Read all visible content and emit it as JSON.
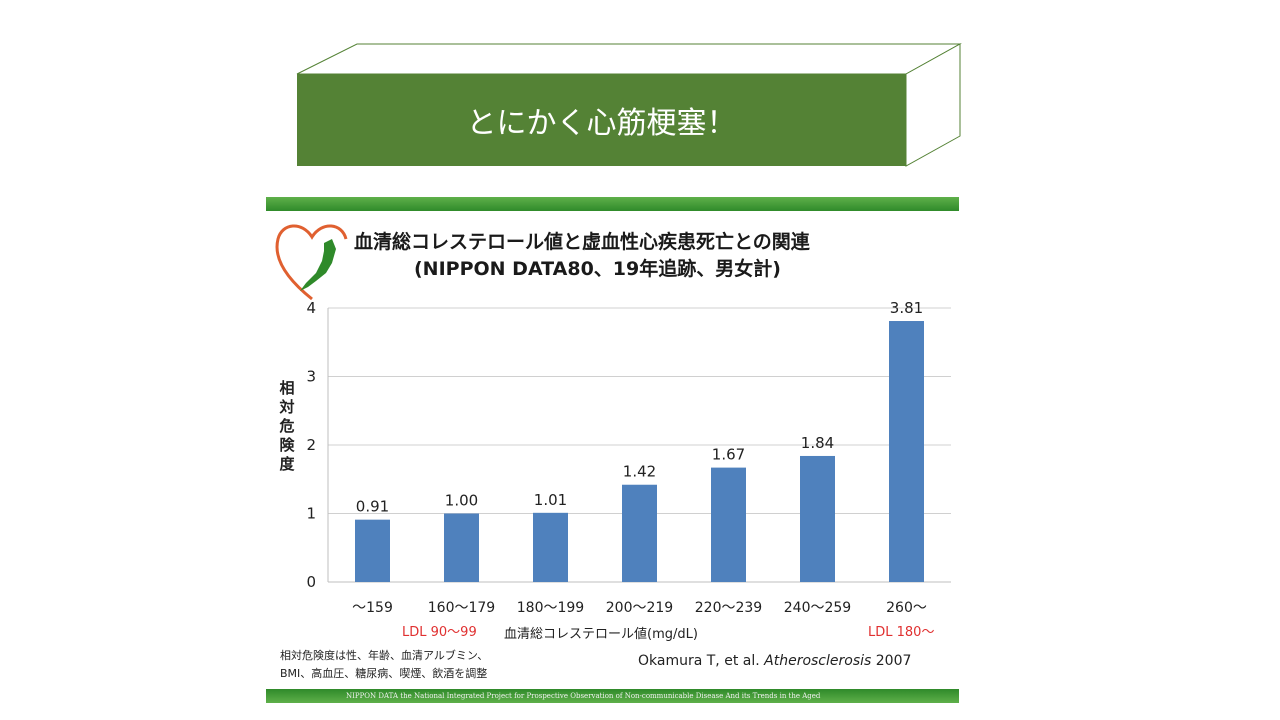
{
  "banner": {
    "title": "とにかく心筋梗塞！",
    "front_color": "#548235",
    "outline_color": "#548235"
  },
  "slide": {
    "logo_text": "NIPPON DATA",
    "footer_text": "NIPPON DATA   the National Integrated Project  for Prospective Observation of Non-communicable Disease And its Trends in the Aged",
    "note_lines": [
      "相対危険度は性、年齢、血清アルブミン、",
      "BMI、高血圧、糖尿病、喫煙、飲酒を調整"
    ],
    "citation_prefix": "Okamura T, et al. ",
    "citation_journal": "Atherosclerosis",
    "citation_year": " 2007",
    "ldl_left": "LDL  90～99",
    "ldl_right": "LDL  180～"
  },
  "chart_data": {
    "type": "bar",
    "title": "血清総コレステロール値と虚血性心疾患死亡との関連",
    "subtitle": "(NIPPON DATA80、19年追跡、男女計)",
    "xlabel": "血清総コレステロール値(mg/dL)",
    "ylabel": "相対危険度",
    "categories": [
      "～159",
      "160～179",
      "180～199",
      "200～219",
      "220～239",
      "240～259",
      "260～"
    ],
    "values": [
      0.91,
      1.0,
      1.01,
      1.42,
      1.67,
      1.84,
      3.81
    ],
    "value_labels": [
      "0.91",
      "1.00",
      "1.01",
      "1.42",
      "1.67",
      "1.84",
      "3.81"
    ],
    "ylim": [
      0,
      4
    ],
    "yticks": [
      0,
      1,
      2,
      3,
      4
    ],
    "grid": true,
    "bar_color": "#4f81bd"
  }
}
